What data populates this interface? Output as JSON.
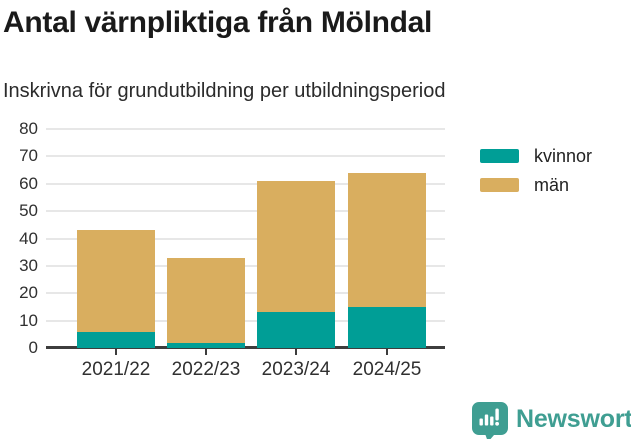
{
  "header": {
    "title": "Antal värnpliktiga från Mölndal",
    "subtitle": "Inskrivna för grundutbildning per utbildningsperiod"
  },
  "chart_data": {
    "type": "bar",
    "stacked": true,
    "title": "Antal värnpliktiga från Mölndal",
    "subtitle": "Inskrivna för grundutbildning per utbildningsperiod",
    "categories": [
      "2021/22",
      "2022/23",
      "2023/24",
      "2024/25"
    ],
    "series": [
      {
        "name": "kvinnor",
        "color": "#009e96",
        "values": [
          6,
          2,
          13,
          15
        ]
      },
      {
        "name": "män",
        "color": "#d9ae5f",
        "values": [
          37,
          31,
          48,
          49
        ]
      }
    ],
    "stack_totals": [
      43,
      33,
      61,
      64
    ],
    "xlabel": "",
    "ylabel": "",
    "ylim": [
      0,
      80
    ],
    "yticks": [
      0,
      10,
      20,
      30,
      40,
      50,
      60,
      70,
      80
    ],
    "grid": "horizontal",
    "legend_position": "top-right"
  },
  "colors": {
    "kvinnor": "#009e96",
    "man": "#d9ae5f",
    "axis": "#3d3d3d",
    "gridline": "#e7e7e7",
    "brand": "#3f9e92"
  },
  "branding": {
    "name": "Newsworthy",
    "icon": "newsworthy-chart-bubble-icon"
  }
}
